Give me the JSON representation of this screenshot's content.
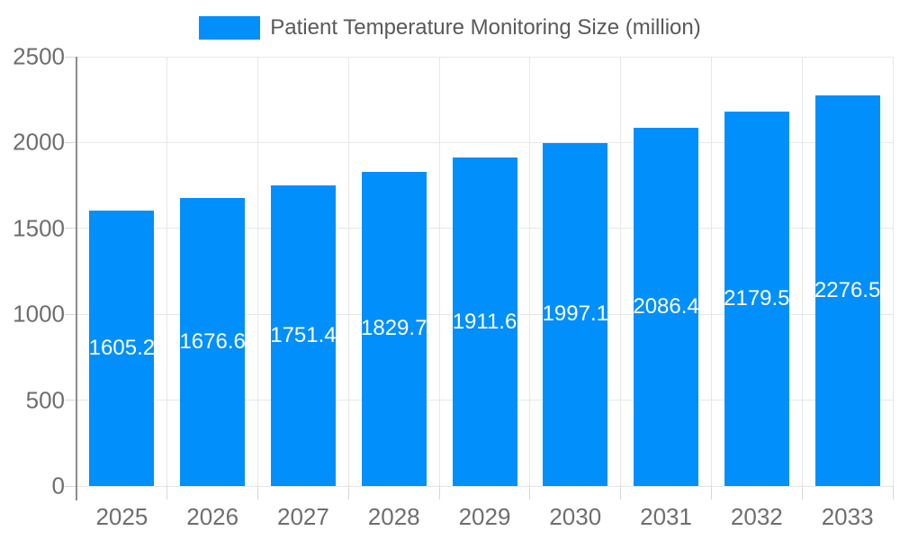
{
  "chart_data": {
    "type": "bar",
    "title": "Patient Temperature Monitoring Size (million)",
    "legend_position": "top",
    "categories": [
      "2025",
      "2026",
      "2027",
      "2028",
      "2029",
      "2030",
      "2031",
      "2032",
      "2033"
    ],
    "values": [
      1605.2,
      1676.6,
      1751.4,
      1829.7,
      1911.6,
      1997.1,
      2086.4,
      2179.5,
      2276.5
    ],
    "value_labels": [
      "1605.2",
      "1676.6",
      "1751.4",
      "1829.7",
      "1911.6",
      "1997.1",
      "2086.4",
      "2179.5",
      "2276.5"
    ],
    "xlabel": "",
    "ylabel": "",
    "ylim": [
      0,
      2500
    ],
    "y_ticks": [
      0,
      500,
      1000,
      1500,
      2000,
      2500
    ],
    "grid": true,
    "colors": {
      "bar": "#008FFB",
      "grid": "#e7e7e7",
      "axis_line": "#8c8c8c",
      "tick": "#d6d6d6",
      "axis_label": "#6e6e6e",
      "title": "#595959",
      "value_label": "#ffffff",
      "background": "#ffffff"
    }
  }
}
